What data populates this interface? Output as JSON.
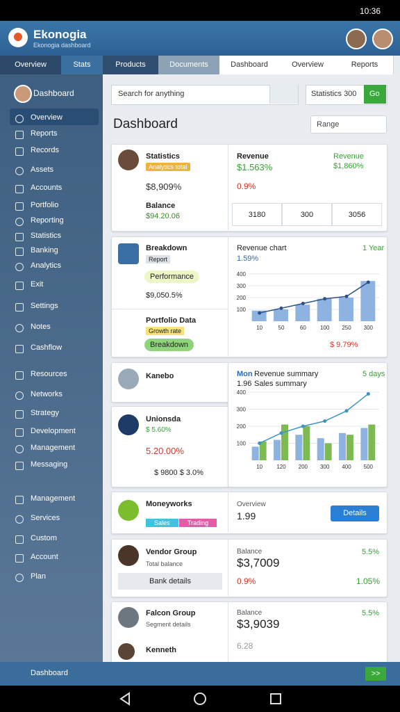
{
  "status_bar": {
    "time": "10:36"
  },
  "header": {
    "title": "Ekonogia",
    "subtitle": "Ekonogia dashboard"
  },
  "tabs": [
    "Overview",
    "Stats",
    "Products",
    "Documents",
    "Dashboard",
    "Overview",
    "Reports"
  ],
  "sidebar": {
    "profile": "Dashboard",
    "items": [
      "Overview",
      "Reports",
      "Records",
      "Assets",
      "Accounts",
      "Portfolio",
      "Reporting",
      "Statistics",
      "Banking",
      "Analytics",
      "Exit",
      "Settings",
      "Notes",
      "Cashflow",
      "Resources",
      "Networks",
      "Strategy",
      "Development",
      "Management",
      "Messaging",
      "Management",
      "Services",
      "Custom",
      "Account",
      "Plan"
    ]
  },
  "search": {
    "placeholder": "Search for anything",
    "filter": "Statistics 300",
    "button": "Go"
  },
  "page_title": "Dashboard",
  "select": "Range",
  "card1": {
    "name": "Statistics",
    "badge": "Analytics total",
    "value": "$8,909%",
    "item_name": "Balance",
    "item_value": "$94.20.06",
    "rev_label": "Revenue",
    "rev_value": "$1.563%",
    "rev2_label": "Revenue",
    "rev2_value": "$1,860%",
    "change": "0.9%",
    "cells": [
      "3180",
      "300",
      "3056"
    ]
  },
  "card2": {
    "name": "Breakdown",
    "badge": "Report",
    "chip": "Performance",
    "value": "$9,050.5%",
    "name2": "Portfolio Data",
    "badge2": "Growth rate",
    "chip2": "Breakdown",
    "chart_title": "Revenue chart",
    "chart_sub": "1.59%",
    "chart_corner": "1 Year",
    "chart_change": "$ 9.79%"
  },
  "card3": {
    "top_name": "Kanebo",
    "name": "Unionsda",
    "badge": "$ 5.60%",
    "value": "5.20.00%",
    "foot": "$ 9800 $ 3.0%",
    "chart_tag": "Mon",
    "chart_title": "Revenue summary",
    "chart_value": "1.96",
    "chart_sub": "Sales summary",
    "chart_corner": "5 days"
  },
  "card4": {
    "name": "Moneyworks",
    "chips": [
      "Sales",
      "Trading"
    ],
    "label": "Overview",
    "value": "1.99",
    "button": "Details"
  },
  "card5": {
    "name": "Vendor Group",
    "sub": "Total balance",
    "button": "Bank details",
    "label": "Balance",
    "value": "$3,7009",
    "change": "0.9%",
    "right": "5.5%",
    "right2": "1.05%"
  },
  "card6": {
    "name": "Falcon Group",
    "sub": "Segment details",
    "label": "Balance",
    "value": "$3,9039",
    "change": "6.28",
    "right": "5.5%",
    "name2": "Kenneth"
  },
  "charts": [
    {
      "type": "bar",
      "ylim": [
        0,
        400
      ],
      "yticks": [
        100,
        200,
        300,
        400
      ],
      "categories": [
        "10",
        "50",
        "60",
        "100",
        "250",
        "300"
      ],
      "series": [
        {
          "color": "#8fb3e0",
          "values": [
            90,
            100,
            140,
            190,
            200,
            340
          ]
        },
        {
          "type": "line",
          "color": "#2c4f86",
          "values": [
            70,
            110,
            150,
            190,
            210,
            330
          ]
        }
      ]
    },
    {
      "type": "bar",
      "ylim": [
        0,
        400
      ],
      "yticks": [
        100,
        200,
        300,
        400
      ],
      "categories": [
        "10",
        "120",
        "200",
        "300",
        "400",
        "500"
      ],
      "series": [
        {
          "color": "#8fb3e0",
          "values": [
            80,
            120,
            150,
            130,
            160,
            190
          ]
        },
        {
          "color": "#7dbb52",
          "values": [
            110,
            210,
            200,
            100,
            150,
            210
          ]
        },
        {
          "type": "line",
          "color": "#3d94c4",
          "values": [
            100,
            160,
            200,
            230,
            290,
            390
          ]
        }
      ]
    }
  ],
  "bottom": {
    "label": "Dashboard",
    "button": ">>"
  }
}
